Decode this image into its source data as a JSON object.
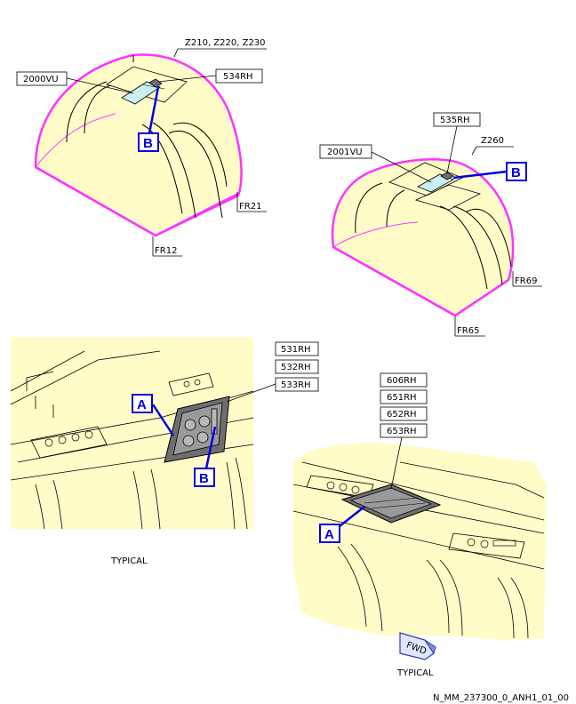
{
  "top_left": {
    "zone": "Z210, Z220, Z230",
    "panel": "2000VU",
    "part": "534RH",
    "frame_aft": "FR21",
    "frame_fwd": "FR12",
    "callout": "B"
  },
  "top_right": {
    "zone": "Z260",
    "panel": "2001VU",
    "part": "535RH",
    "frame_aft": "FR69",
    "frame_fwd": "FR65",
    "callout": "B"
  },
  "detail_a_left": {
    "parts": [
      "531RH",
      "532RH",
      "533RH"
    ],
    "callout_a": "A",
    "callout_b": "B",
    "caption": "TYPICAL"
  },
  "detail_a_right": {
    "parts": [
      "606RH",
      "651RH",
      "652RH",
      "653RH"
    ],
    "callout_a": "A",
    "caption": "TYPICAL",
    "fwd_symbol": "FWD"
  },
  "reference": "N_MM_237300_0_ANH1_01_00",
  "colors": {
    "fuselage_fill": "#fffcc8",
    "zone_outline": "#ff33ff",
    "callout_blue": "#0000e0",
    "panel_cyan": "#c8f0f0",
    "part_gray": "#6e6e6e"
  }
}
